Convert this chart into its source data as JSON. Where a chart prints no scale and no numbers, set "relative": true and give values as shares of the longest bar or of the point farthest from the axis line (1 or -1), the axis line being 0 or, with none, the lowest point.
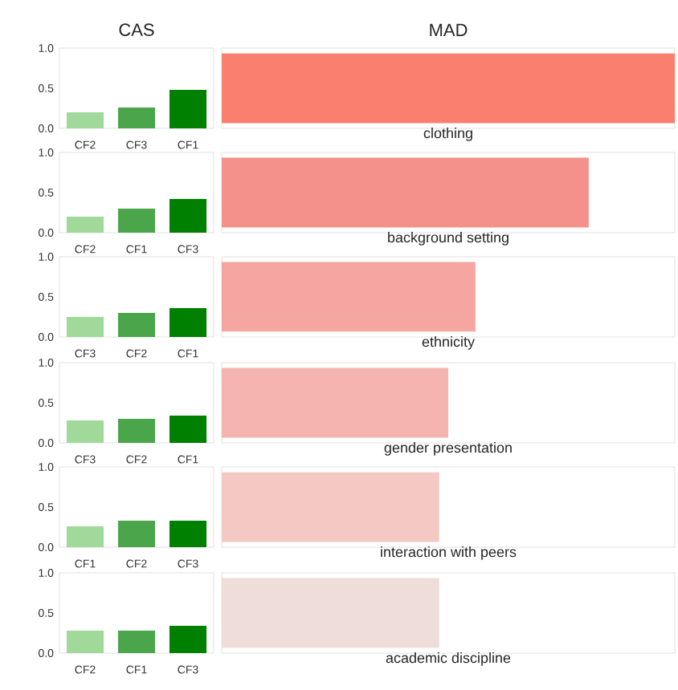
{
  "chart_data": [
    {
      "type": "bar",
      "title": "CAS",
      "categories": [
        "CF2",
        "CF3",
        "CF1"
      ],
      "values": [
        0.2,
        0.26,
        0.48
      ],
      "colors": [
        "#a1d99b",
        "#4ba64b",
        "#008000"
      ],
      "ylim": [
        0,
        1
      ],
      "yticks": [
        {
          "value": 0,
          "label": "0.0"
        },
        {
          "value": 0.5,
          "label": "0.5"
        },
        {
          "value": 1,
          "label": "1.0"
        }
      ]
    },
    {
      "type": "bar",
      "categories": [
        "CF2",
        "CF1",
        "CF3"
      ],
      "values": [
        0.2,
        0.3,
        0.42
      ],
      "colors": [
        "#a1d99b",
        "#4ba64b",
        "#008000"
      ],
      "ylim": [
        0,
        1
      ],
      "yticks": [
        {
          "value": 0,
          "label": "0.0"
        },
        {
          "value": 0.5,
          "label": "0.5"
        },
        {
          "value": 1,
          "label": "1.0"
        }
      ]
    },
    {
      "type": "bar",
      "categories": [
        "CF3",
        "CF2",
        "CF1"
      ],
      "values": [
        0.25,
        0.3,
        0.36
      ],
      "colors": [
        "#a1d99b",
        "#4ba64b",
        "#008000"
      ],
      "ylim": [
        0,
        1
      ],
      "yticks": [
        {
          "value": 0,
          "label": "0.0"
        },
        {
          "value": 0.5,
          "label": "0.5"
        },
        {
          "value": 1,
          "label": "1.0"
        }
      ]
    },
    {
      "type": "bar",
      "categories": [
        "CF3",
        "CF2",
        "CF1"
      ],
      "values": [
        0.28,
        0.3,
        0.34
      ],
      "colors": [
        "#a1d99b",
        "#4ba64b",
        "#008000"
      ],
      "ylim": [
        0,
        1
      ],
      "yticks": [
        {
          "value": 0,
          "label": "0.0"
        },
        {
          "value": 0.5,
          "label": "0.5"
        },
        {
          "value": 1,
          "label": "1.0"
        }
      ]
    },
    {
      "type": "bar",
      "categories": [
        "CF1",
        "CF2",
        "CF3"
      ],
      "values": [
        0.26,
        0.33,
        0.33
      ],
      "colors": [
        "#a1d99b",
        "#4ba64b",
        "#008000"
      ],
      "ylim": [
        0,
        1
      ],
      "yticks": [
        {
          "value": 0,
          "label": "0.0"
        },
        {
          "value": 0.5,
          "label": "0.5"
        },
        {
          "value": 1,
          "label": "1.0"
        }
      ]
    },
    {
      "type": "bar",
      "categories": [
        "CF2",
        "CF1",
        "CF3"
      ],
      "values": [
        0.28,
        0.28,
        0.34
      ],
      "colors": [
        "#a1d99b",
        "#4ba64b",
        "#008000"
      ],
      "ylim": [
        0,
        1
      ],
      "yticks": [
        {
          "value": 0,
          "label": "0.0"
        },
        {
          "value": 0.5,
          "label": "0.5"
        },
        {
          "value": 1,
          "label": "1.0"
        }
      ]
    },
    {
      "type": "bar",
      "title": "MAD",
      "orientation": "horizontal",
      "relative": true,
      "categories": [
        "clothing",
        "background setting",
        "ethnicity",
        "gender presentation",
        "interaction with peers",
        "academic discipline"
      ],
      "values": [
        1,
        0.81,
        0.56,
        0.5,
        0.48,
        0.48
      ],
      "colors": [
        "#fa7f6f",
        "#f4918a",
        "#f5a6a0",
        "#f5b4b0",
        "#f4c9c4",
        "#eeddd8"
      ]
    }
  ]
}
